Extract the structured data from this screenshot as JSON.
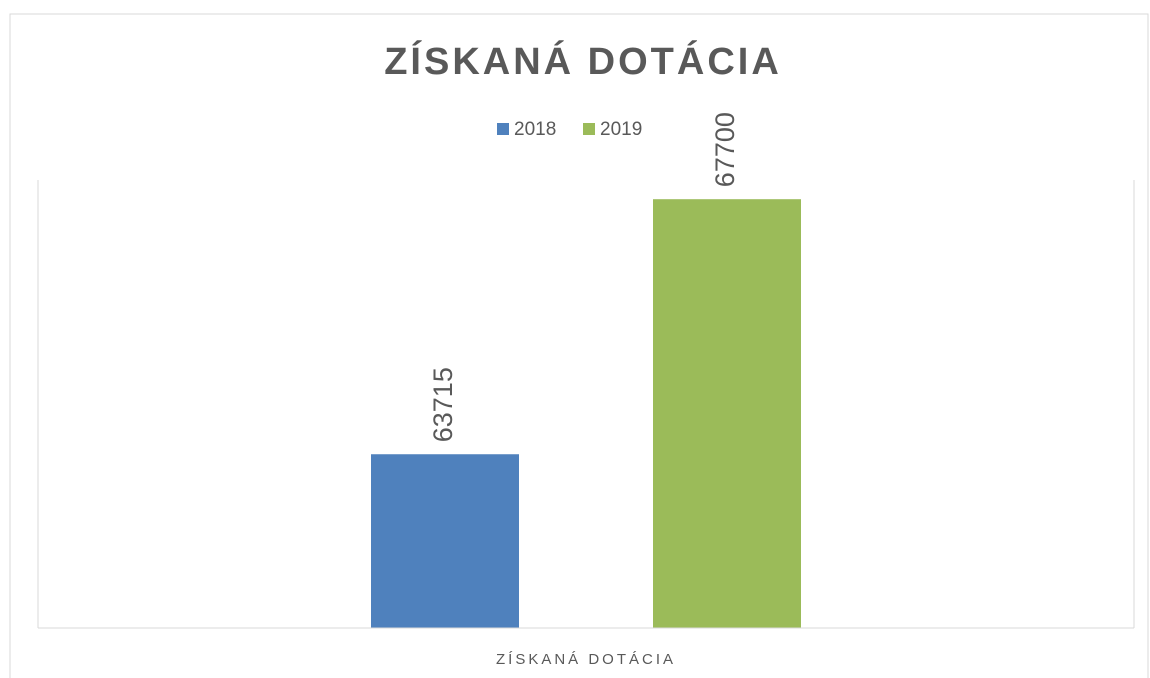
{
  "chart_data": {
    "type": "bar",
    "title": "ZÍSKANÁ DOTÁCIA",
    "categories": [
      "ZÍSKANÁ DOTÁCIA"
    ],
    "series": [
      {
        "name": "2018",
        "color": "#4f81bd",
        "values": [
          63715
        ]
      },
      {
        "name": "2019",
        "color": "#9bbb59",
        "values": [
          67700
        ]
      }
    ],
    "ylim": [
      61000,
      68000
    ],
    "legend": "top"
  }
}
